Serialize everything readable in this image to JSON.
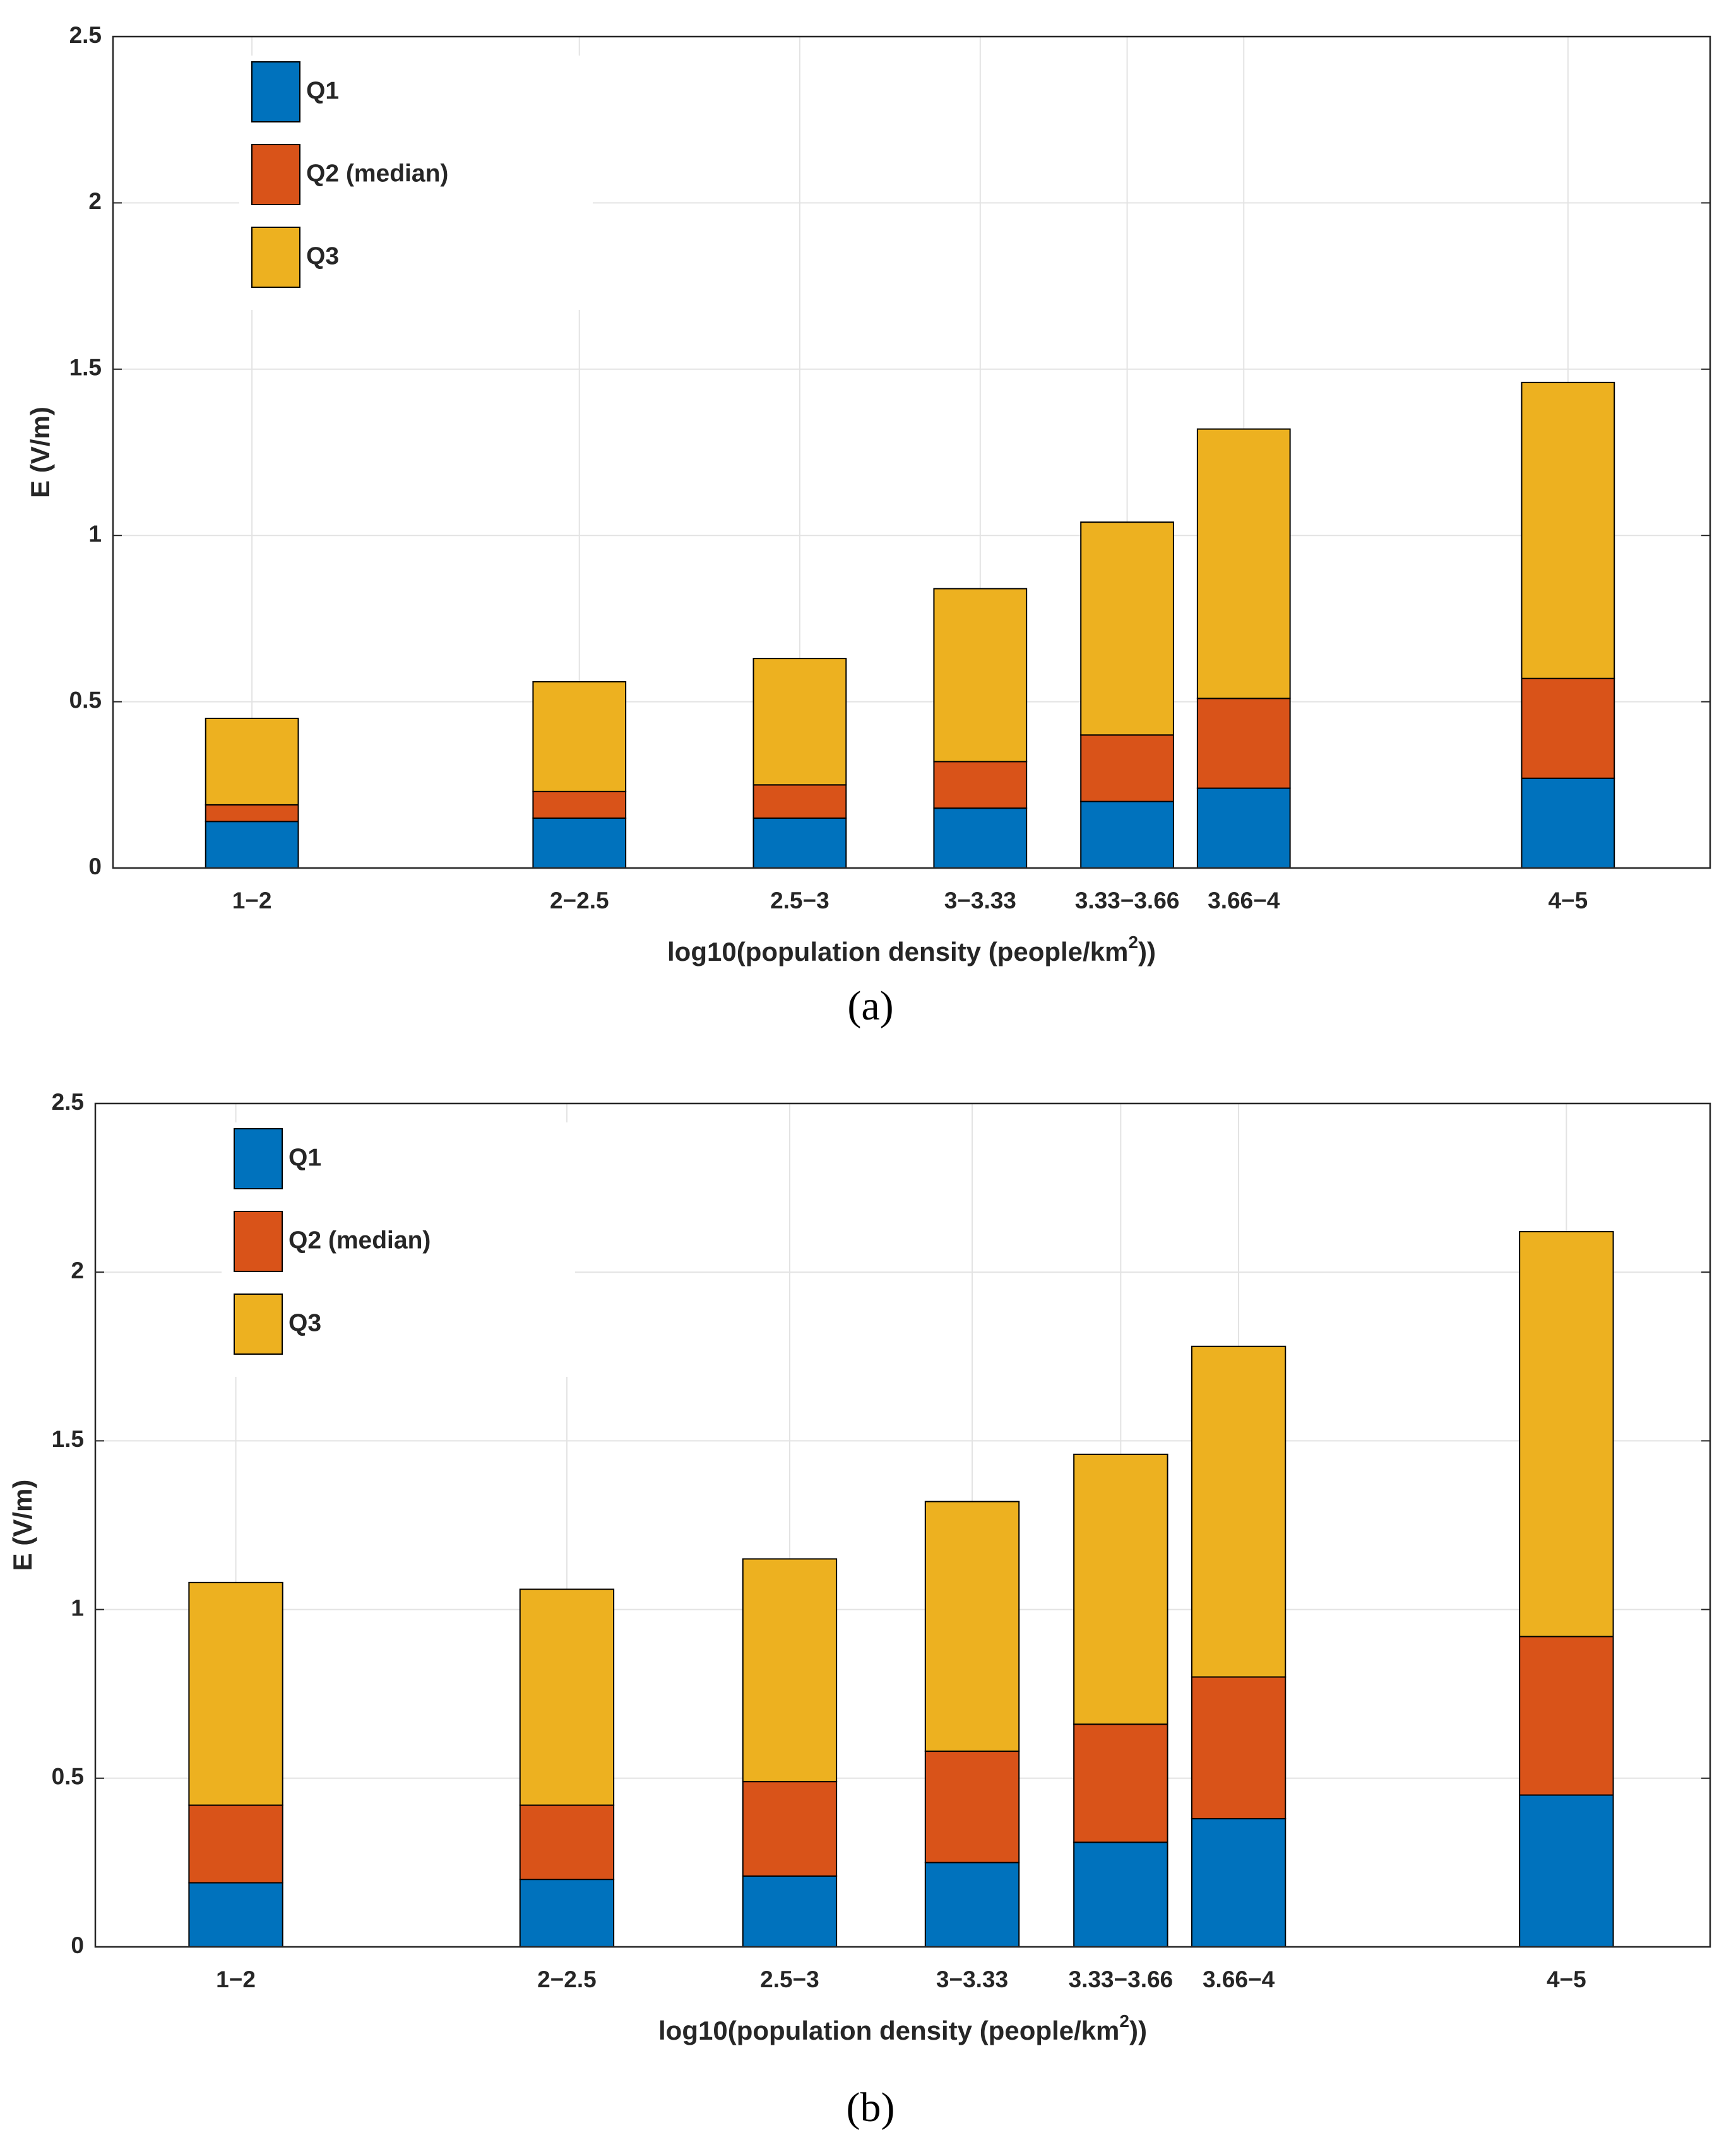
{
  "chart_data": [
    {
      "type": "bar",
      "stacked": true,
      "categories": [
        "1−2",
        "2−2.5",
        "2.5−3",
        "3−3.33",
        "3.33−3.66",
        "3.66−4",
        "4−5"
      ],
      "series": [
        {
          "name": "Q1",
          "color": "#0072BD",
          "values": [
            0.14,
            0.15,
            0.15,
            0.18,
            0.2,
            0.24,
            0.27
          ]
        },
        {
          "name": "Q2 (median)",
          "color": "#D95319",
          "values": [
            0.05,
            0.08,
            0.1,
            0.14,
            0.2,
            0.27,
            0.3
          ]
        },
        {
          "name": "Q3",
          "color": "#EDB120",
          "values": [
            0.26,
            0.33,
            0.38,
            0.52,
            0.64,
            0.81,
            0.89
          ]
        }
      ],
      "ylim": [
        0,
        2.5
      ],
      "yticks": [
        0,
        0.5,
        1,
        1.5,
        2,
        2.5
      ],
      "ylabel": "E (V/m)",
      "xlabel": [
        "log10(population density (people/km",
        "2",
        "))"
      ],
      "caption": "(a)",
      "grid": true,
      "legend": "upper left"
    },
    {
      "type": "bar",
      "stacked": true,
      "categories": [
        "1−2",
        "2−2.5",
        "2.5−3",
        "3−3.33",
        "3.33−3.66",
        "3.66−4",
        "4−5"
      ],
      "series": [
        {
          "name": "Q1",
          "color": "#0072BD",
          "values": [
            0.19,
            0.2,
            0.21,
            0.25,
            0.31,
            0.38,
            0.45
          ]
        },
        {
          "name": "Q2 (median)",
          "color": "#D95319",
          "values": [
            0.23,
            0.22,
            0.28,
            0.33,
            0.35,
            0.42,
            0.47
          ]
        },
        {
          "name": "Q3",
          "color": "#EDB120",
          "values": [
            0.66,
            0.64,
            0.66,
            0.74,
            0.8,
            0.98,
            1.2
          ]
        }
      ],
      "ylim": [
        0,
        2.5
      ],
      "yticks": [
        0,
        0.5,
        1,
        1.5,
        2,
        2.5
      ],
      "ylabel": "E (V/m)",
      "xlabel": [
        "log10(population density (people/km",
        "2",
        "))"
      ],
      "caption": "(b)",
      "grid": true,
      "legend": "upper left"
    }
  ]
}
